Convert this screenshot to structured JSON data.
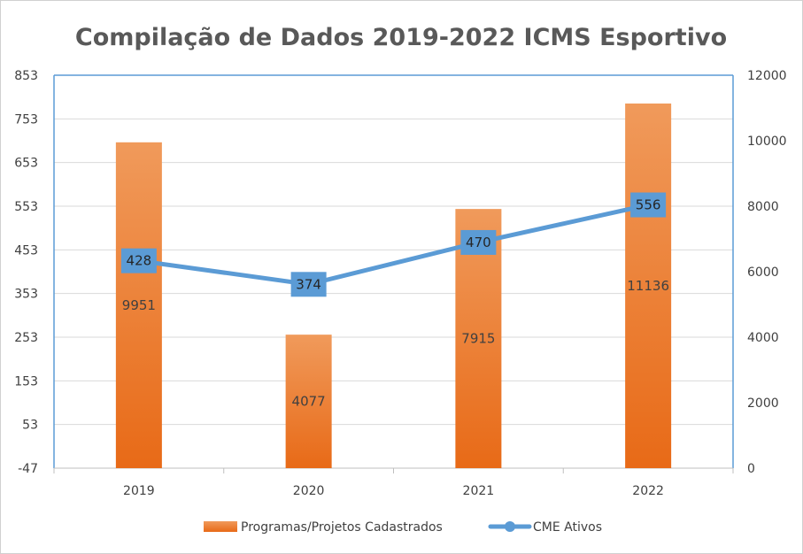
{
  "chart_data": {
    "type": "bar+line",
    "title": "Compilação de Dados 2019-2022 ICMS Esportivo",
    "categories": [
      "2019",
      "2020",
      "2021",
      "2022"
    ],
    "series": [
      {
        "name": "Programas/Projetos Cadastrados",
        "type": "bar",
        "axis": "right",
        "values": [
          9951,
          4077,
          7915,
          11136
        ],
        "color": "#ED7D31"
      },
      {
        "name": "CME Ativos",
        "type": "line",
        "axis": "left",
        "values": [
          428,
          374,
          470,
          556
        ],
        "color": "#5B9BD5"
      }
    ],
    "y_left": {
      "ylim": [
        -47,
        853
      ],
      "ticks": [
        "853",
        "753",
        "653",
        "553",
        "453",
        "353",
        "253",
        "153",
        "53",
        "-47"
      ]
    },
    "y_right": {
      "ylim": [
        0,
        12000
      ],
      "ticks": [
        "12000",
        "10000",
        "8000",
        "6000",
        "4000",
        "2000",
        "0"
      ]
    },
    "legend_position": "bottom",
    "grid": true
  }
}
